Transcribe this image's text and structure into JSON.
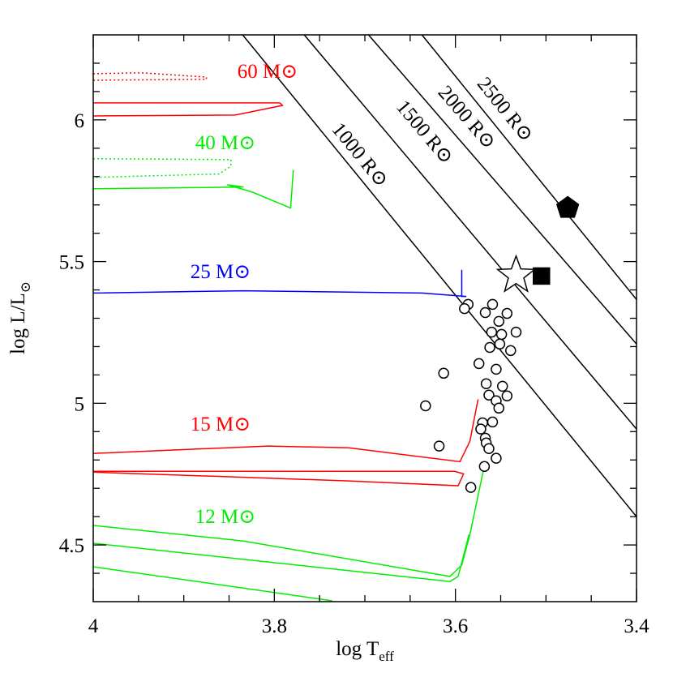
{
  "chart_data": {
    "type": "line",
    "x_label": "log T",
    "x_label_sub": "eff",
    "y_label": "log L/L",
    "y_label_sub": "⊙",
    "xlim": [
      4,
      3.4
    ],
    "ylim": [
      4.3,
      6.3
    ],
    "xticks": [
      4,
      3.8,
      3.6,
      3.4
    ],
    "yticks": [
      4.5,
      5,
      5.5,
      6
    ],
    "xminorticks": [
      3.95,
      3.9,
      3.85,
      3.75,
      3.7,
      3.65,
      3.55,
      3.5,
      3.45
    ],
    "yminorticks": [
      4.4,
      4.6,
      4.7,
      4.8,
      4.9,
      5.1,
      5.2,
      5.3,
      5.4,
      5.6,
      5.7,
      5.8,
      5.9,
      6.1,
      6.2
    ],
    "series": [
      {
        "name": "60 M⊙",
        "color": "#ff0000",
        "x": [
          4,
          3.794,
          3.791,
          3.843,
          4
        ],
        "values": [
          6.06,
          6.06,
          6.051,
          6.017,
          6.014
        ],
        "x_dotted": [
          4,
          3.946,
          3.875,
          3.875,
          4
        ],
        "values_dotted": [
          6.163,
          6.166,
          6.151,
          6.143,
          6.14
        ]
      },
      {
        "name": "40 M⊙",
        "color": "#00ee00",
        "x": [
          4,
          3.834,
          3.852,
          3.825,
          3.782,
          3.779
        ],
        "values": [
          5.757,
          5.763,
          5.771,
          5.746,
          5.689,
          5.823
        ],
        "x_dotted": [
          4,
          3.848,
          3.848,
          3.861,
          4
        ],
        "values_dotted": [
          5.863,
          5.86,
          5.837,
          5.809,
          5.797
        ]
      },
      {
        "name": "25 M⊙",
        "color": "#0000ff",
        "x": [
          4,
          3.834,
          3.637,
          3.588,
          3.593,
          3.593
        ],
        "values": [
          5.389,
          5.397,
          5.389,
          5.377,
          5.377,
          5.471
        ]
      },
      {
        "name": "15 M⊙",
        "color": "#ff0000",
        "x": [
          3.575,
          3.584,
          3.595,
          3.718,
          3.807,
          4,
          null,
          4,
          3.601,
          3.591,
          3.597,
          3.718,
          4
        ],
        "values": [
          5.014,
          4.866,
          4.794,
          4.843,
          4.849,
          4.823,
          null,
          4.76,
          4.76,
          4.751,
          4.709,
          4.726,
          4.757
        ]
      },
      {
        "name": "12 M⊙",
        "color": "#00ee00",
        "x": [
          4,
          3.834,
          3.606,
          3.593,
          3.584,
          3.568,
          null,
          4,
          3.924,
          3.606,
          3.597,
          3.585,
          null,
          4,
          3.736
        ],
        "values": [
          4.569,
          4.514,
          4.389,
          4.429,
          4.537,
          4.78,
          null,
          4.506,
          4.48,
          4.371,
          4.389,
          4.537,
          null,
          4.423,
          4.303
        ]
      }
    ],
    "radius_lines": [
      {
        "name": "1000 R⊙",
        "color": "#000000",
        "x": [
          3.835,
          3.4
        ],
        "values": [
          6.3,
          4.6
        ]
      },
      {
        "name": "1500 R⊙",
        "color": "#000000",
        "x": [
          3.767,
          3.4
        ],
        "values": [
          6.3,
          4.909
        ]
      },
      {
        "name": "2000 R⊙",
        "color": "#000000",
        "x": [
          3.696,
          3.4
        ],
        "values": [
          6.3,
          5.209
        ]
      },
      {
        "name": "2500 R⊙",
        "color": "#000000",
        "x": [
          3.637,
          3.4
        ],
        "values": [
          6.3,
          5.366
        ]
      }
    ],
    "points": [
      {
        "marker": "circle",
        "color": "#000000",
        "filled": false,
        "x": [
          3.586,
          3.59,
          3.567,
          3.559,
          3.543,
          3.552,
          3.56,
          3.549,
          3.533,
          3.562,
          3.551,
          3.539,
          3.574,
          3.555,
          3.566,
          3.548,
          3.543,
          3.563,
          3.555,
          3.552,
          3.559,
          3.57,
          3.572,
          3.567,
          3.566,
          3.563,
          3.555,
          3.568,
          3.583,
          3.613,
          3.633,
          3.618
        ],
        "values": [
          5.349,
          5.334,
          5.32,
          5.349,
          5.317,
          5.289,
          5.251,
          5.243,
          5.251,
          5.197,
          5.209,
          5.186,
          5.14,
          5.12,
          5.069,
          5.06,
          5.026,
          5.029,
          5.009,
          4.983,
          4.934,
          4.931,
          4.909,
          4.877,
          4.86,
          4.84,
          4.806,
          4.777,
          4.703,
          5.106,
          4.991,
          4.849
        ]
      },
      {
        "marker": "pentagon",
        "color": "#000000",
        "filled": true,
        "x": [
          3.476
        ],
        "values": [
          5.689
        ]
      },
      {
        "marker": "square",
        "color": "#000000",
        "filled": true,
        "x": [
          3.505
        ],
        "values": [
          5.449
        ]
      },
      {
        "marker": "star",
        "color": "#000000",
        "filled": false,
        "x": [
          3.533
        ],
        "values": [
          5.451
        ]
      }
    ]
  }
}
